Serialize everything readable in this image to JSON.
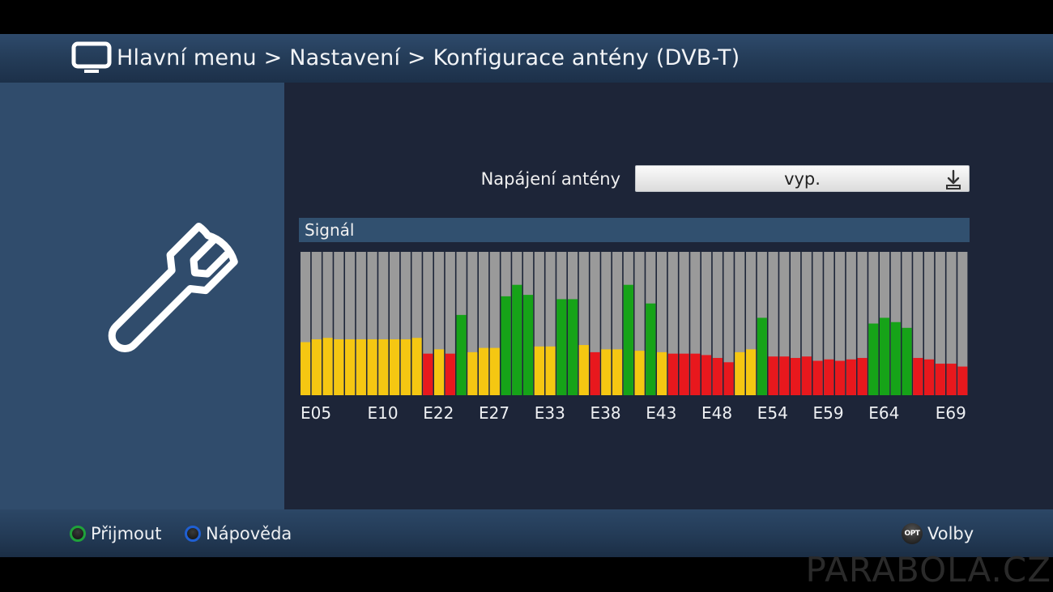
{
  "header": {
    "breadcrumb": "Hlavní menu > Nastavení > Konfigurace antény (DVB-T)",
    "icon": "tv-icon"
  },
  "sidebar": {
    "icon": "wrench-icon"
  },
  "settings": {
    "antenna_power_label": "Napájení antény",
    "antenna_power_value": "vyp.",
    "antenna_power_icon": "download-icon"
  },
  "signal": {
    "section_title": "Signál"
  },
  "chart_data": {
    "type": "bar",
    "title": "",
    "xlabel": "",
    "ylabel": "",
    "ylim": [
      0,
      100
    ],
    "grid": false,
    "tick_labels": [
      "E05",
      "E10",
      "E22",
      "E27",
      "E33",
      "E38",
      "E43",
      "E48",
      "E54",
      "E59",
      "E64",
      "E69"
    ],
    "tick_bar_index": [
      0,
      6,
      11,
      16,
      21,
      26,
      31,
      36,
      41,
      46,
      51,
      57
    ],
    "colors": {
      "weak": "#e8181d",
      "medium": "#f5c712",
      "strong": "#16a318",
      "empty": "#9a9a9a"
    },
    "values": [
      37,
      39,
      40,
      39,
      39,
      39,
      39,
      39,
      39,
      39,
      40,
      29,
      32,
      29,
      56,
      30,
      33,
      33,
      69,
      77,
      70,
      34,
      34,
      67,
      67,
      35,
      30,
      32,
      32,
      77,
      31,
      64,
      30,
      29,
      29,
      29,
      28,
      26,
      23,
      30,
      32,
      54,
      27,
      27,
      26,
      27,
      24,
      25,
      24,
      25,
      26,
      50,
      54,
      51,
      47,
      26,
      25,
      22,
      22,
      20
    ],
    "levels": [
      "medium",
      "medium",
      "medium",
      "medium",
      "medium",
      "medium",
      "medium",
      "medium",
      "medium",
      "medium",
      "medium",
      "weak",
      "medium",
      "weak",
      "strong",
      "medium",
      "medium",
      "medium",
      "strong",
      "strong",
      "strong",
      "medium",
      "medium",
      "strong",
      "strong",
      "medium",
      "weak",
      "medium",
      "medium",
      "strong",
      "medium",
      "strong",
      "medium",
      "weak",
      "weak",
      "weak",
      "weak",
      "weak",
      "weak",
      "medium",
      "medium",
      "strong",
      "weak",
      "weak",
      "weak",
      "weak",
      "weak",
      "weak",
      "weak",
      "weak",
      "weak",
      "strong",
      "strong",
      "strong",
      "strong",
      "weak",
      "weak",
      "weak",
      "weak",
      "weak"
    ]
  },
  "footer": {
    "accept_label": "Přijmout",
    "help_label": "Nápověda",
    "options_badge": "OPT",
    "options_label": "Volby"
  },
  "watermark": "PARABOLA.CZ"
}
